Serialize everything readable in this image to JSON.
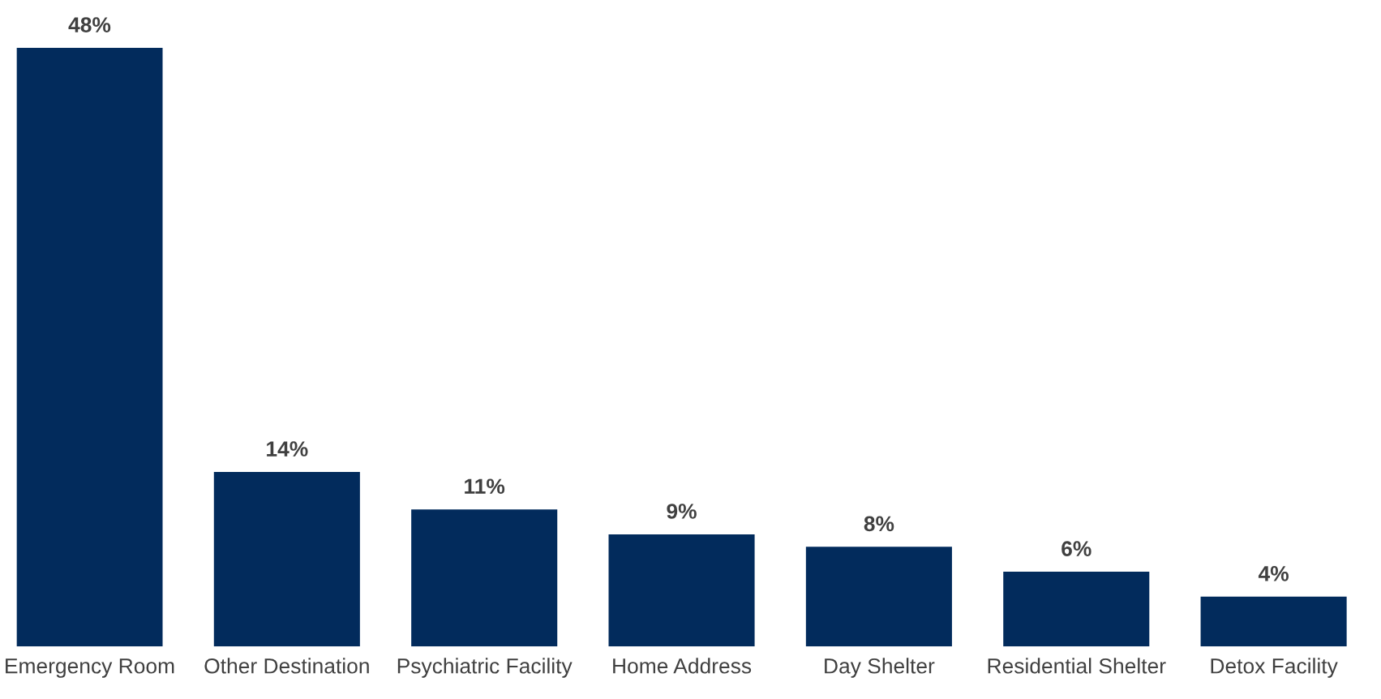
{
  "chart_data": {
    "type": "bar",
    "categories": [
      "Emergency Room",
      "Other Destination",
      "Psychiatric Facility",
      "Home Address",
      "Day Shelter",
      "Residential Shelter",
      "Detox Facility"
    ],
    "values": [
      48,
      14,
      11,
      9,
      8,
      6,
      4
    ],
    "value_labels": [
      "48%",
      "14%",
      "11%",
      "9%",
      "8%",
      "6%",
      "4%"
    ],
    "color": "#022b5c"
  }
}
